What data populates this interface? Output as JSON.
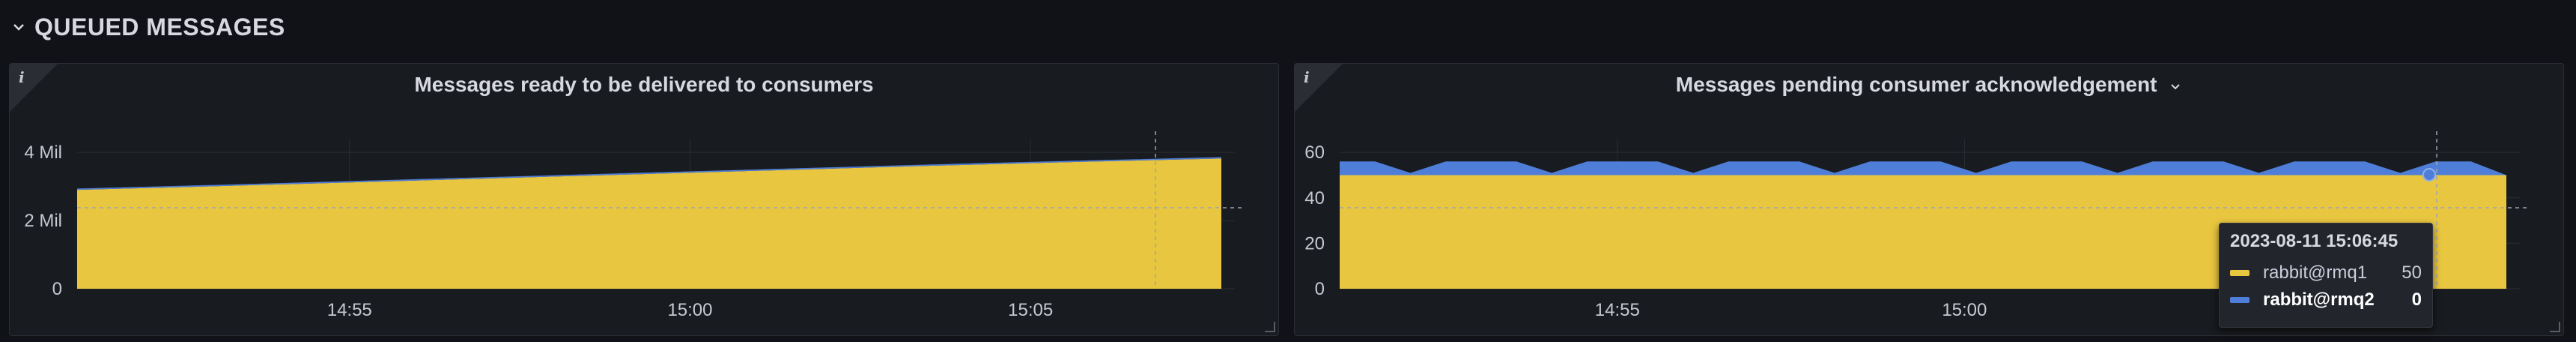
{
  "row": {
    "title": "QUEUED MESSAGES"
  },
  "colors": {
    "yellow": "#e8c640",
    "blue": "#4f7ed8",
    "grid": "#2a2d33",
    "crosshair": "#9fa3ad"
  },
  "panels": [
    {
      "title": "Messages ready to be delivered to consumers",
      "chart_data": {
        "type": "area",
        "stacked": true,
        "x_range": [
          "14:51",
          "15:08"
        ],
        "x_ticks": [
          "14:55",
          "15:00",
          "15:05"
        ],
        "ylim": [
          0,
          4400000
        ],
        "y_ticks": [
          {
            "value": 0,
            "label": "0"
          },
          {
            "value": 2000000,
            "label": "2 Mil"
          },
          {
            "value": 4000000,
            "label": "4 Mil"
          }
        ],
        "series": [
          {
            "values": [
              2900000,
              3010000,
              3130000,
              3250000,
              3370000,
              3490000,
              3610000,
              3720000,
              3820000
            ],
            "color": "yellow"
          },
          {
            "values": [
              40000,
              40000,
              40000,
              40000,
              40000,
              40000,
              40000,
              40000,
              40000
            ],
            "color": "blue"
          }
        ]
      }
    },
    {
      "title": "Messages pending consumer acknowledgement",
      "chart_data": {
        "type": "area",
        "stacked": true,
        "x_range": [
          "14:51",
          "15:08"
        ],
        "x_ticks": [
          "14:55",
          "15:00"
        ],
        "ylim": [
          0,
          66
        ],
        "y_ticks": [
          {
            "value": 0,
            "label": "0"
          },
          {
            "value": 20,
            "label": "20"
          },
          {
            "value": 40,
            "label": "40"
          },
          {
            "value": 60,
            "label": "60"
          }
        ],
        "series": [
          {
            "name": "rabbit@rmq1",
            "values": [
              50,
              50,
              50,
              50,
              50,
              50,
              50,
              50,
              50,
              50,
              50,
              50,
              50,
              50,
              50,
              50,
              50,
              50,
              50,
              50,
              50,
              50,
              50,
              50,
              50,
              50,
              50,
              50,
              50,
              50,
              50,
              50,
              50,
              50
            ],
            "color": "yellow"
          },
          {
            "name": "rabbit@rmq2",
            "values": [
              6,
              6,
              1,
              6,
              6,
              6,
              1,
              6,
              6,
              6,
              1,
              6,
              6,
              6,
              1,
              6,
              6,
              6,
              1,
              6,
              6,
              6,
              1,
              6,
              6,
              6,
              1,
              6,
              6,
              6,
              1,
              6,
              6,
              0
            ],
            "color": "blue"
          }
        ]
      },
      "tooltip": {
        "time": "2023-08-11 15:06:45",
        "rows": [
          {
            "name": "rabbit@rmq1",
            "value": "50"
          },
          {
            "name": "rabbit@rmq2",
            "value": "0"
          }
        ]
      }
    }
  ]
}
